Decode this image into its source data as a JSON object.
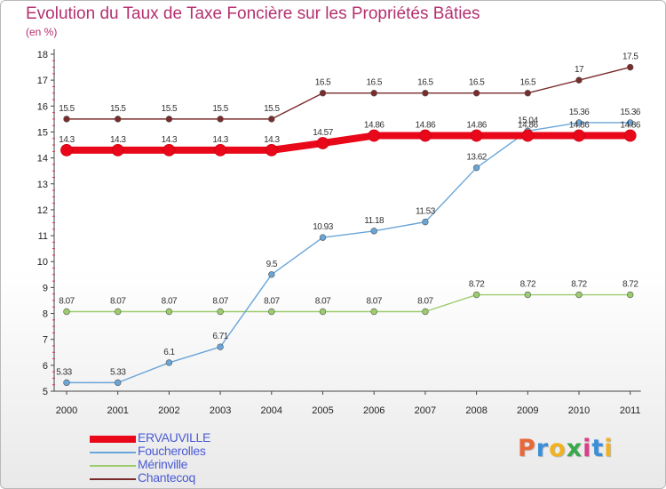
{
  "header": {
    "title": "Evolution du Taux de Taxe Foncière sur les Propriétés Bâties",
    "unit": "(en %)"
  },
  "logo": {
    "letters": [
      "P",
      "r",
      "o",
      "x",
      "i",
      "t",
      "i"
    ],
    "colors": [
      "#e8683a",
      "#3b8fd8",
      "#f0b21f",
      "#38a84a",
      "#d8408a",
      "#3b8fd8",
      "#f0b21f"
    ]
  },
  "chart_data": {
    "type": "line",
    "title": "Evolution du Taux de Taxe Foncière sur les Propriétés Bâties",
    "ylabel": "(en %)",
    "xlabel": "",
    "ylim": [
      5,
      18
    ],
    "grid": false,
    "legend_position": "bottom-left",
    "x": [
      "2000",
      "2001",
      "2002",
      "2003",
      "2004",
      "2005",
      "2006",
      "2007",
      "2008",
      "2009",
      "2010",
      "2011"
    ],
    "yticks": [
      "5",
      "6",
      "7",
      "8",
      "9",
      "10",
      "11",
      "12",
      "13",
      "14",
      "15",
      "16",
      "17",
      "18"
    ],
    "series": [
      {
        "name": "Chantecoq",
        "color": "#7a2b2b",
        "values": [
          15.5,
          15.5,
          15.5,
          15.5,
          15.5,
          16.5,
          16.5,
          16.5,
          16.5,
          16.5,
          17,
          17.5
        ],
        "labels": [
          "15.5",
          "15.5",
          "15.5",
          "15.5",
          "15.5",
          "16.5",
          "16.5",
          "16.5",
          "16.5",
          "16.5",
          "17",
          "17.5"
        ]
      },
      {
        "name": "Mérinville",
        "color": "#9ccd6c",
        "values": [
          8.07,
          8.07,
          8.07,
          8.07,
          8.07,
          8.07,
          8.07,
          8.07,
          8.72,
          8.72,
          8.72,
          8.72
        ],
        "labels": [
          "8.07",
          "8.07",
          "8.07",
          "8.07",
          "8.07",
          "8.07",
          "8.07",
          "8.07",
          "8.72",
          "8.72",
          "8.72",
          "8.72"
        ]
      },
      {
        "name": "Foucherolles",
        "color": "#6aa5d8",
        "values": [
          5.33,
          5.33,
          6.1,
          6.71,
          9.5,
          10.93,
          11.18,
          11.53,
          13.62,
          15.04,
          15.36,
          15.36
        ],
        "labels": [
          "5.33",
          "5.33",
          "6.1",
          "6.71",
          "9.5",
          "10.93",
          "11.18",
          "11.53",
          "13.62",
          "15.04",
          "15.36",
          "15.36"
        ]
      },
      {
        "name": "ERVAUVILLE",
        "color": "#e8081a",
        "values": [
          14.3,
          14.3,
          14.3,
          14.3,
          14.3,
          14.57,
          14.86,
          14.86,
          14.86,
          14.86,
          14.86,
          14.86
        ],
        "labels": [
          "14.3",
          "14.3",
          "14.3",
          "14.3",
          "14.3",
          "14.57",
          "14.86",
          "14.86",
          "14.86",
          "14.86",
          "14.86",
          "14.86"
        ]
      }
    ]
  }
}
